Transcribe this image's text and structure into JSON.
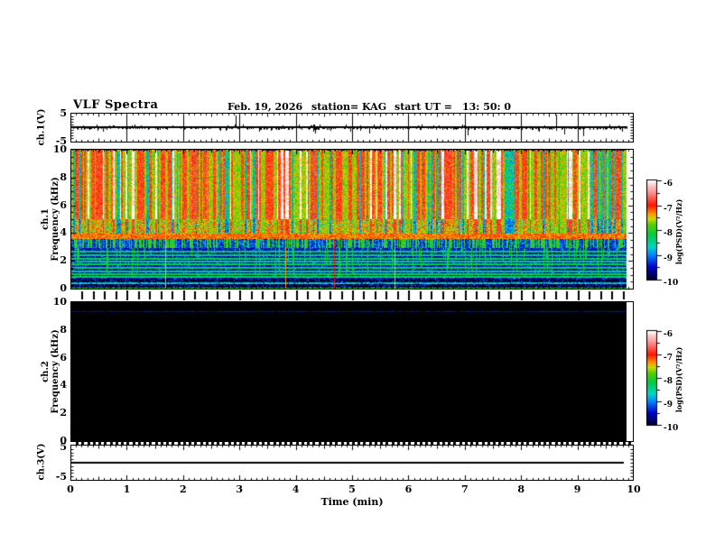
{
  "header": {
    "title": "VLF Spectra",
    "date": "Feb. 19, 2026",
    "station": "station= KAG",
    "start_label": "start UT =",
    "start_time": "13: 50: 0"
  },
  "xaxis": {
    "label": "Time (min)",
    "min": 0,
    "max": 10,
    "ticks": [
      0,
      1,
      2,
      3,
      4,
      5,
      6,
      7,
      8,
      9,
      10
    ],
    "minor_tick_min": 0.1,
    "data_end_min": 9.85
  },
  "chart_data": {
    "type": "heatmap",
    "description": "Four stacked VLF receiver panels sharing a 0-10 minute time axis: ch.1 voltage waveform, ch.1 spectrogram (strong broadband activity), ch.2 spectrogram (no signal, black), ch.3 voltage waveform (flat 0 V line).",
    "panels": [
      {
        "id": "ch1_wave",
        "ylabel": "ch.1(V)",
        "yrange": [
          -5,
          5
        ],
        "yticks": [
          5,
          -5
        ],
        "baseline_v": 0,
        "noise_v": 0.5,
        "minute_grid_lines": [
          0,
          1,
          2,
          3,
          4,
          5,
          6,
          7,
          8,
          9,
          10
        ],
        "spikes_t_v": [
          [
            2.93,
            4.2
          ],
          [
            3.35,
            -1.5
          ],
          [
            3.55,
            -1.2
          ],
          [
            4.1,
            -1.1
          ],
          [
            4.35,
            -2.3
          ],
          [
            5.15,
            -1.2
          ],
          [
            5.3,
            -2.2
          ],
          [
            5.55,
            -1.0
          ],
          [
            6.2,
            -0.9
          ],
          [
            7.05,
            -2.8
          ],
          [
            7.5,
            -1.0
          ],
          [
            8.3,
            -1.3
          ],
          [
            8.62,
            4.5
          ],
          [
            8.77,
            -2.6
          ],
          [
            9.0,
            -2.0
          ],
          [
            9.1,
            -3.3
          ],
          [
            9.35,
            -0.9
          ]
        ]
      },
      {
        "id": "ch1_spec",
        "ylabel1": "ch.1",
        "ylabel2": "Frequency (kHz)",
        "yrange": [
          0,
          10
        ],
        "yticks": [
          10,
          8,
          6,
          4,
          2,
          0
        ],
        "time_extent_min": [
          0,
          9.85
        ],
        "features": {
          "streak_region_khz": [
            5.0,
            10.0
          ],
          "streak_note": "dense vertical red streaks with white cores on yellow-green background",
          "green_region_khz": [
            3.95,
            5.0
          ],
          "orange_band_khz": [
            3.6,
            3.95
          ],
          "green_streaks_on_blue_khz": [
            2.95,
            3.6
          ],
          "blue_speckle_khz": [
            0.7,
            2.95
          ],
          "horizontal_lines_khz": [
            2.65,
            2.4,
            2.15,
            1.95,
            1.75,
            1.5,
            1.25,
            1.05,
            0.85
          ],
          "black_region_khz": [
            0.08,
            0.7
          ],
          "low_cyan_line_khz": 0.4,
          "bottom_green_line_khz": 0,
          "vertical_lines": [
            {
              "t": 1.68,
              "psd": -7.5,
              "f_top": 4.8
            },
            {
              "t": 3.81,
              "psd": -7.35,
              "f_top": 3.0
            },
            {
              "t": 4.68,
              "psd": -7.0,
              "f_top": 3.6
            },
            {
              "t": 5.75,
              "psd": -7.55,
              "f_top": 3.6
            }
          ]
        }
      },
      {
        "id": "ch2_spec",
        "ylabel1": "ch.2",
        "ylabel2": "Frequency (kHz)",
        "yrange": [
          0,
          10
        ],
        "yticks": [
          10,
          8,
          6,
          4,
          2,
          0
        ],
        "time_extent_min": [
          0,
          9.85
        ],
        "features": {
          "background_psd": -10,
          "dashed_line_khz": 9.35,
          "dashed_line_color": "#0011dd"
        }
      },
      {
        "id": "ch3_wave",
        "ylabel": "ch.3(V)",
        "yrange": [
          -5,
          5
        ],
        "yticks": [
          5,
          -5
        ],
        "flat_line_v": 0,
        "line_extent_min": [
          0,
          9.8
        ]
      }
    ],
    "colorbar": {
      "label": "log(PSD)(V²/Hz)",
      "range": [
        -10,
        -6
      ],
      "ticks": [
        -6,
        -7,
        -8,
        -9,
        -10
      ],
      "stops": [
        [
          -10.0,
          "#000030"
        ],
        [
          -9.5,
          "#0000cc"
        ],
        [
          -9.0,
          "#0088ff"
        ],
        [
          -8.7,
          "#00d4cc"
        ],
        [
          -8.2,
          "#00cc44"
        ],
        [
          -7.8,
          "#55cc00"
        ],
        [
          -7.55,
          "#c8dc00"
        ],
        [
          -7.35,
          "#ff9900"
        ],
        [
          -7.0,
          "#ff1500"
        ],
        [
          -6.5,
          "#ff8c8c"
        ],
        [
          -6.15,
          "#ffd2d2"
        ],
        [
          -6.0,
          "#ffffff"
        ]
      ]
    }
  }
}
